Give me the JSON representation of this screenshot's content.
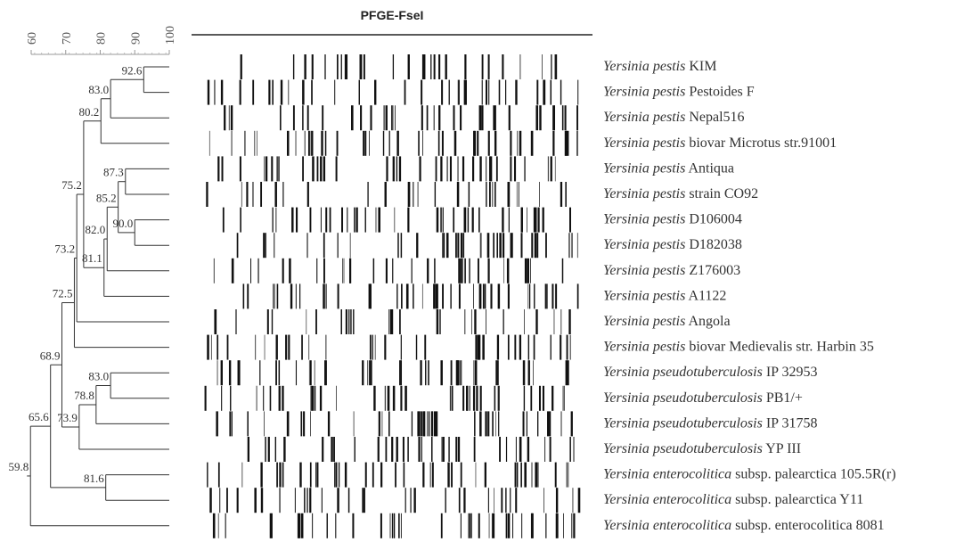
{
  "title": "PFGE-FseI",
  "scale_ticks": [
    60,
    70,
    80,
    90,
    100
  ],
  "nodes": [
    "92.6",
    "83.0",
    "80.2",
    "87.3",
    "85.2",
    "90.0",
    "82.0",
    "81.1",
    "75.2",
    "73.2",
    "72.5",
    "83.0",
    "78.8",
    "73.9",
    "68.9",
    "65.6",
    "81.6",
    "59.8"
  ],
  "strains": [
    {
      "species": "Yersinia pestis",
      "strain": "KIM"
    },
    {
      "species": "Yersinia pestis",
      "strain": "Pestoides F"
    },
    {
      "species": "Yersinia pestis",
      "strain": "Nepal516"
    },
    {
      "species": "Yersinia pestis",
      "strain": "biovar Microtus str.91001"
    },
    {
      "species": "Yersinia pestis",
      "strain": "Antiqua"
    },
    {
      "species": "Yersinia pestis",
      "strain": "strain CO92"
    },
    {
      "species": "Yersinia pestis",
      "strain": "D106004"
    },
    {
      "species": "Yersinia pestis",
      "strain": "D182038"
    },
    {
      "species": "Yersinia pestis",
      "strain": "Z176003"
    },
    {
      "species": "Yersinia pestis",
      "strain": "A1122"
    },
    {
      "species": "Yersinia pestis",
      "strain": "Angola"
    },
    {
      "species": "Yersinia pestis",
      "strain": "biovar Medievalis str. Harbin 35"
    },
    {
      "species": "Yersinia pseudotuberculosis",
      "strain": "IP 32953"
    },
    {
      "species": "Yersinia pseudotuberculosis",
      "strain": "PB1/+"
    },
    {
      "species": "Yersinia pseudotuberculosis",
      "strain": "IP 31758"
    },
    {
      "species": "Yersinia pseudotuberculosis",
      "strain": "YP III"
    },
    {
      "species": "Yersinia enterocolitica",
      "strain": "subsp. palearctica 105.5R(r)"
    },
    {
      "species": "Yersinia enterocolitica",
      "strain": "subsp. palearctica Y11"
    },
    {
      "species": "Yersinia enterocolitica",
      "strain": "subsp. enterocolitica 8081"
    }
  ]
}
